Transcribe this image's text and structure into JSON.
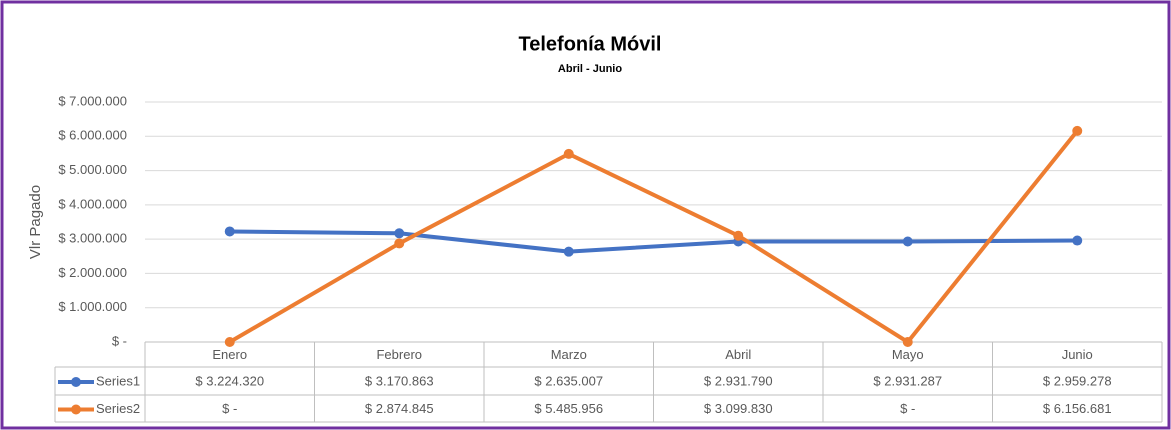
{
  "chart_data": {
    "type": "line",
    "title": "Telefonía Móvil",
    "subtitle": "Abril - Junio",
    "y_label": "Vlr Pagado",
    "categories": [
      "Enero",
      "Febrero",
      "Marzo",
      "Abril",
      "Mayo",
      "Junio"
    ],
    "series": [
      {
        "name": "Series1",
        "color": "#4472c4",
        "values": [
          3224320,
          3170863,
          2635007,
          2931790,
          2931287,
          2959278
        ],
        "value_labels": [
          "$ 3.224.320",
          "$ 3.170.863",
          "$ 2.635.007",
          "$ 2.931.790",
          "$ 2.931.287",
          "$ 2.959.278"
        ]
      },
      {
        "name": "Series2",
        "color": "#ed7d31",
        "values": [
          0,
          2874845,
          5485956,
          3099830,
          0,
          6156681
        ],
        "value_labels": [
          "$ -",
          "$ 2.874.845",
          "$ 5.485.956",
          "$ 3.099.830",
          "$ -",
          "$ 6.156.681"
        ]
      }
    ],
    "ylim": [
      0,
      7000000
    ],
    "yticks": [
      {
        "value": 0,
        "label": "$ -"
      },
      {
        "value": 1000000,
        "label": "$ 1.000.000"
      },
      {
        "value": 2000000,
        "label": "$ 2.000.000"
      },
      {
        "value": 3000000,
        "label": "$ 3.000.000"
      },
      {
        "value": 4000000,
        "label": "$ 4.000.000"
      },
      {
        "value": 5000000,
        "label": "$ 5.000.000"
      },
      {
        "value": 6000000,
        "label": "$ 6.000.000"
      },
      {
        "value": 7000000,
        "label": "$ 7.000.000"
      }
    ],
    "grid": true,
    "data_table": true
  }
}
